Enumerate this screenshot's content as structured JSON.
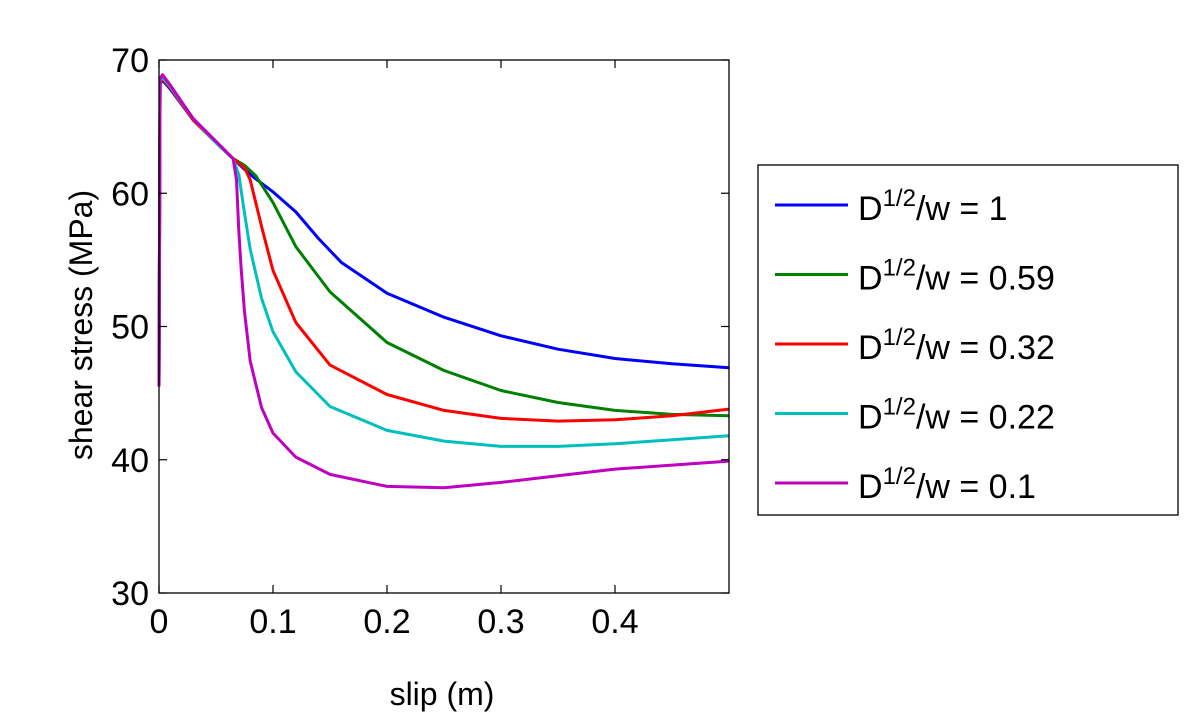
{
  "chart_data": {
    "type": "line",
    "xlabel": "slip (m)",
    "ylabel": "shear stress (MPa)",
    "xlim": [
      0,
      0.5
    ],
    "ylim": [
      30,
      70
    ],
    "xticks": [
      "0",
      "0.1",
      "0.2",
      "0.3",
      "0.4"
    ],
    "xtick_values": [
      0,
      0.1,
      0.2,
      0.3,
      0.4
    ],
    "yticks": [
      "30",
      "40",
      "50",
      "60",
      "70"
    ],
    "ytick_values": [
      30,
      40,
      50,
      60,
      70
    ],
    "grid": false,
    "legend_position": "right",
    "series": [
      {
        "name": "D^{1/2}/w = 1",
        "legend_base": "D",
        "legend_sup": "1/2",
        "legend_rest": "/w = 1",
        "color": "#0000ff",
        "x": [
          0,
          0.001,
          0.003,
          0.01,
          0.03,
          0.05,
          0.065,
          0.08,
          0.1,
          0.12,
          0.14,
          0.16,
          0.2,
          0.25,
          0.3,
          0.35,
          0.4,
          0.45,
          0.5
        ],
        "y": [
          45.5,
          68.2,
          68.5,
          67.8,
          65.5,
          63.8,
          62.6,
          61.4,
          60.1,
          58.6,
          56.6,
          54.8,
          52.5,
          50.7,
          49.3,
          48.3,
          47.6,
          47.2,
          46.9
        ]
      },
      {
        "name": "D^{1/2}/w = 0.59",
        "legend_base": "D",
        "legend_sup": "1/2",
        "legend_rest": "/w = 0.59",
        "color": "#008000",
        "x": [
          0,
          0.001,
          0.003,
          0.01,
          0.03,
          0.05,
          0.065,
          0.075,
          0.085,
          0.1,
          0.12,
          0.15,
          0.2,
          0.25,
          0.3,
          0.35,
          0.4,
          0.45,
          0.5
        ],
        "y": [
          45.5,
          68.3,
          68.6,
          67.9,
          65.5,
          63.8,
          62.6,
          62.1,
          61.3,
          59.3,
          56.0,
          52.6,
          48.8,
          46.7,
          45.2,
          44.3,
          43.7,
          43.4,
          43.3
        ]
      },
      {
        "name": "D^{1/2}/w = 0.32",
        "legend_base": "D",
        "legend_sup": "1/2",
        "legend_rest": "/w = 0.32",
        "color": "#ff0000",
        "x": [
          0,
          0.001,
          0.003,
          0.01,
          0.03,
          0.05,
          0.065,
          0.075,
          0.08,
          0.09,
          0.1,
          0.12,
          0.15,
          0.2,
          0.25,
          0.3,
          0.35,
          0.4,
          0.45,
          0.5
        ],
        "y": [
          45.5,
          68.3,
          68.6,
          67.9,
          65.5,
          63.8,
          62.6,
          61.9,
          61.0,
          57.5,
          54.2,
          50.3,
          47.1,
          44.9,
          43.7,
          43.1,
          42.9,
          43.0,
          43.3,
          43.8
        ]
      },
      {
        "name": "D^{1/2}/w = 0.22",
        "legend_base": "D",
        "legend_sup": "1/2",
        "legend_rest": "/w = 0.22",
        "color": "#00bfbf",
        "x": [
          0,
          0.001,
          0.003,
          0.01,
          0.03,
          0.05,
          0.065,
          0.07,
          0.075,
          0.08,
          0.09,
          0.1,
          0.12,
          0.15,
          0.2,
          0.25,
          0.3,
          0.35,
          0.4,
          0.45,
          0.5
        ],
        "y": [
          45.5,
          68.4,
          68.7,
          68.0,
          65.6,
          63.8,
          62.6,
          61.4,
          58.5,
          55.8,
          52.1,
          49.6,
          46.6,
          44.0,
          42.2,
          41.4,
          41.0,
          41.0,
          41.2,
          41.5,
          41.8
        ]
      },
      {
        "name": "D^{1/2}/w = 0.1",
        "legend_base": "D",
        "legend_sup": "1/2",
        "legend_rest": "/w = 0.1",
        "color": "#bf00bf",
        "x": [
          0,
          0.001,
          0.003,
          0.01,
          0.03,
          0.05,
          0.065,
          0.068,
          0.07,
          0.072,
          0.075,
          0.08,
          0.09,
          0.1,
          0.12,
          0.15,
          0.2,
          0.25,
          0.3,
          0.35,
          0.4,
          0.45,
          0.5
        ],
        "y": [
          45.5,
          68.6,
          68.9,
          68.1,
          65.6,
          63.9,
          62.6,
          61.0,
          57.2,
          54.4,
          51.1,
          47.4,
          43.9,
          42.0,
          40.2,
          38.9,
          38.0,
          37.9,
          38.3,
          38.8,
          39.3,
          39.6,
          39.9
        ]
      }
    ]
  }
}
